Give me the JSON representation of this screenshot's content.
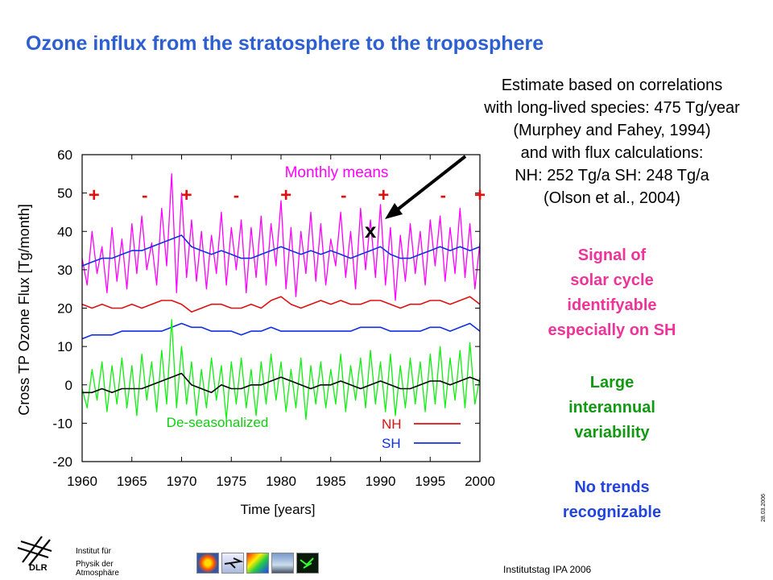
{
  "title": "Ozone influx from the stratosphere to the troposphere",
  "estimate_lines": [
    "Estimate based on correlations",
    "with long-lived species: 475 Tg/year",
    "(Murphey and Fahey, 1994)",
    "and with flux calculations:",
    "NH: 252 Tg/a SH: 248 Tg/a",
    "(Olson et al., 2004)"
  ],
  "signal_lines": [
    "Signal of",
    "solar cycle",
    "identifyable",
    "especially on SH"
  ],
  "variability_lines": [
    "Large",
    "interannual",
    "variability"
  ],
  "trend_lines": [
    "No trends",
    "recognizable"
  ],
  "colors": {
    "title": "#2d5fd0",
    "monthly": "#ff00ff",
    "nh": "#e01010",
    "sh": "#1030e0",
    "deseason": "#11ee11",
    "deseason_mean": "#000000",
    "signal_text": "#ee3399",
    "variability_text": "#119911",
    "trend_text": "#2244dd"
  },
  "footer": {
    "institute_lines": [
      "Institut für",
      "Physik der",
      "Atmosphäre"
    ],
    "logo_text": "DLR",
    "event": "Institutstag IPA 2006",
    "date": "28.03.2006"
  },
  "chart_data": {
    "type": "line",
    "xlabel": "Time [years]",
    "ylabel": "Cross TP Ozone Flux [Tg/month]",
    "xlim": [
      1960,
      2000
    ],
    "ylim": [
      -20,
      60
    ],
    "xticks": [
      1960,
      1965,
      1970,
      1975,
      1980,
      1985,
      1990,
      1995,
      2000
    ],
    "yticks": [
      -20,
      -10,
      0,
      10,
      20,
      30,
      40,
      50,
      60
    ],
    "grid": false,
    "legend": {
      "position": "bottom-right",
      "entries": [
        "NH",
        "SH"
      ]
    },
    "annotations": {
      "monthly_means": "Monthly means",
      "deseasonalized": "De-seasonalized",
      "estimate_marker": {
        "label": "x",
        "x": 1989,
        "y": 40.5
      },
      "solar_signs": [
        {
          "x": 1961.2,
          "sign": "+"
        },
        {
          "x": 1966.3,
          "sign": "-"
        },
        {
          "x": 1970.5,
          "sign": "+"
        },
        {
          "x": 1975.5,
          "sign": "-"
        },
        {
          "x": 1980.5,
          "sign": "+"
        },
        {
          "x": 1986.3,
          "sign": "-"
        },
        {
          "x": 1990.3,
          "sign": "+"
        },
        {
          "x": 1996.3,
          "sign": "-"
        },
        {
          "x": 2000.0,
          "sign": "+"
        }
      ]
    },
    "series": [
      {
        "key": "monthly",
        "x": [
          1960.0,
          1960.5,
          1961.0,
          1961.5,
          1962.0,
          1962.5,
          1963.0,
          1963.5,
          1964.0,
          1964.5,
          1965.0,
          1965.5,
          1966.0,
          1966.5,
          1967.0,
          1967.5,
          1968.0,
          1968.5,
          1969.0,
          1969.5,
          1970.0,
          1970.5,
          1971.0,
          1971.5,
          1972.0,
          1972.5,
          1973.0,
          1973.5,
          1974.0,
          1974.5,
          1975.0,
          1975.5,
          1976.0,
          1976.5,
          1977.0,
          1977.5,
          1978.0,
          1978.5,
          1979.0,
          1979.5,
          1980.0,
          1980.5,
          1981.0,
          1981.5,
          1982.0,
          1982.5,
          1983.0,
          1983.5,
          1984.0,
          1984.5,
          1985.0,
          1985.5,
          1986.0,
          1986.5,
          1987.0,
          1987.5,
          1988.0,
          1988.5,
          1989.0,
          1989.5,
          1990.0,
          1990.5,
          1991.0,
          1991.5,
          1992.0,
          1992.5,
          1993.0,
          1993.5,
          1994.0,
          1994.5,
          1995.0,
          1995.5,
          1996.0,
          1996.5,
          1997.0,
          1997.5,
          1998.0,
          1998.5,
          1999.0,
          1999.5,
          2000.0
        ],
        "y": [
          33,
          26,
          40,
          29,
          36,
          24,
          41,
          27,
          38,
          25,
          42,
          29,
          44,
          30,
          37,
          26,
          46,
          31,
          55,
          24,
          50,
          28,
          43,
          27,
          40,
          25,
          39,
          29,
          45,
          26,
          41,
          30,
          43,
          24,
          41,
          28,
          44,
          26,
          42,
          31,
          48,
          25,
          41,
          23,
          40,
          29,
          45,
          27,
          42,
          26,
          38,
          31,
          45,
          28,
          40,
          25,
          46,
          30,
          43,
          28,
          47,
          26,
          41,
          22,
          39,
          27,
          42,
          29,
          40,
          26,
          43,
          31,
          44,
          27,
          41,
          29,
          46,
          28,
          42,
          25,
          37
        ]
      },
      {
        "key": "monthly_mean",
        "x": [
          1960,
          1961,
          1962,
          1963,
          1964,
          1965,
          1966,
          1967,
          1968,
          1969,
          1970,
          1971,
          1972,
          1973,
          1974,
          1975,
          1976,
          1977,
          1978,
          1979,
          1980,
          1981,
          1982,
          1983,
          1984,
          1985,
          1986,
          1987,
          1988,
          1989,
          1990,
          1991,
          1992,
          1993,
          1994,
          1995,
          1996,
          1997,
          1998,
          1999,
          2000
        ],
        "y": [
          31,
          32,
          33,
          33,
          34,
          35,
          35,
          36,
          37,
          38,
          39,
          36,
          35,
          34,
          35,
          34,
          33,
          33,
          34,
          35,
          36,
          35,
          34,
          35,
          34,
          35,
          34,
          33,
          34,
          35,
          36,
          34,
          33,
          33,
          34,
          35,
          36,
          35,
          36,
          35,
          36
        ]
      },
      {
        "key": "nh",
        "name": "NH",
        "x": [
          1960,
          1961,
          1962,
          1963,
          1964,
          1965,
          1966,
          1967,
          1968,
          1969,
          1970,
          1971,
          1972,
          1973,
          1974,
          1975,
          1976,
          1977,
          1978,
          1979,
          1980,
          1981,
          1982,
          1983,
          1984,
          1985,
          1986,
          1987,
          1988,
          1989,
          1990,
          1991,
          1992,
          1993,
          1994,
          1995,
          1996,
          1997,
          1998,
          1999,
          2000
        ],
        "y": [
          21,
          20,
          21,
          20,
          20,
          21,
          20,
          21,
          22,
          22,
          21,
          19,
          20,
          21,
          21,
          20,
          20,
          21,
          20,
          22,
          23,
          21,
          20,
          21,
          22,
          21,
          22,
          21,
          21,
          22,
          22,
          21,
          20,
          21,
          21,
          22,
          22,
          21,
          22,
          23,
          21
        ]
      },
      {
        "key": "sh",
        "name": "SH",
        "x": [
          1960,
          1961,
          1962,
          1963,
          1964,
          1965,
          1966,
          1967,
          1968,
          1969,
          1970,
          1971,
          1972,
          1973,
          1974,
          1975,
          1976,
          1977,
          1978,
          1979,
          1980,
          1981,
          1982,
          1983,
          1984,
          1985,
          1986,
          1987,
          1988,
          1989,
          1990,
          1991,
          1992,
          1993,
          1994,
          1995,
          1996,
          1997,
          1998,
          1999,
          2000
        ],
        "y": [
          12,
          13,
          13,
          13,
          14,
          14,
          14,
          14,
          14,
          15,
          16,
          15,
          15,
          14,
          14,
          14,
          13,
          14,
          14,
          15,
          14,
          14,
          14,
          14,
          14,
          14,
          14,
          14,
          15,
          15,
          15,
          14,
          14,
          14,
          14,
          15,
          15,
          14,
          15,
          16,
          14
        ]
      },
      {
        "key": "deseason",
        "x": [
          1960.0,
          1960.5,
          1961.0,
          1961.5,
          1962.0,
          1962.5,
          1963.0,
          1963.5,
          1964.0,
          1964.5,
          1965.0,
          1965.5,
          1966.0,
          1966.5,
          1967.0,
          1967.5,
          1968.0,
          1968.5,
          1969.0,
          1969.5,
          1970.0,
          1970.5,
          1971.0,
          1971.5,
          1972.0,
          1972.5,
          1973.0,
          1973.5,
          1974.0,
          1974.5,
          1975.0,
          1975.5,
          1976.0,
          1976.5,
          1977.0,
          1977.5,
          1978.0,
          1978.5,
          1979.0,
          1979.5,
          1980.0,
          1980.5,
          1981.0,
          1981.5,
          1982.0,
          1982.5,
          1983.0,
          1983.5,
          1984.0,
          1984.5,
          1985.0,
          1985.5,
          1986.0,
          1986.5,
          1987.0,
          1987.5,
          1988.0,
          1988.5,
          1989.0,
          1989.5,
          1990.0,
          1990.5,
          1991.0,
          1991.5,
          1992.0,
          1992.5,
          1993.0,
          1993.5,
          1994.0,
          1994.5,
          1995.0,
          1995.5,
          1996.0,
          1996.5,
          1997.0,
          1997.5,
          1998.0,
          1998.5,
          1999.0,
          1999.5,
          2000.0
        ],
        "y": [
          -1,
          -6,
          4,
          -4,
          6,
          -7,
          5,
          -5,
          7,
          -6,
          5,
          -8,
          8,
          -4,
          6,
          -7,
          9,
          -5,
          17,
          -6,
          10,
          -5,
          6,
          -8,
          4,
          -6,
          7,
          -4,
          5,
          -9,
          6,
          -5,
          7,
          -6,
          4,
          -8,
          6,
          -5,
          8,
          -4,
          6,
          -7,
          4,
          -6,
          7,
          -9,
          5,
          -5,
          6,
          -6,
          4,
          -5,
          8,
          -7,
          5,
          -4,
          7,
          -6,
          9,
          -5,
          6,
          -7,
          8,
          -8,
          5,
          -6,
          7,
          -5,
          6,
          -7,
          8,
          -5,
          10,
          -6,
          7,
          -4,
          9,
          -6,
          11,
          -5,
          2
        ]
      },
      {
        "key": "deseason_mean",
        "x": [
          1960,
          1961,
          1962,
          1963,
          1964,
          1965,
          1966,
          1967,
          1968,
          1969,
          1970,
          1971,
          1972,
          1973,
          1974,
          1975,
          1976,
          1977,
          1978,
          1979,
          1980,
          1981,
          1982,
          1983,
          1984,
          1985,
          1986,
          1987,
          1988,
          1989,
          1990,
          1991,
          1992,
          1993,
          1994,
          1995,
          1996,
          1997,
          1998,
          1999,
          2000
        ],
        "y": [
          -2,
          -2,
          -1,
          -2,
          -1,
          -1,
          -1,
          0,
          1,
          2,
          3,
          0,
          -1,
          -2,
          0,
          -1,
          -1,
          0,
          0,
          1,
          2,
          1,
          0,
          -1,
          0,
          0,
          1,
          0,
          -1,
          0,
          1,
          0,
          -1,
          -1,
          0,
          1,
          1,
          0,
          1,
          2,
          1
        ]
      }
    ]
  }
}
